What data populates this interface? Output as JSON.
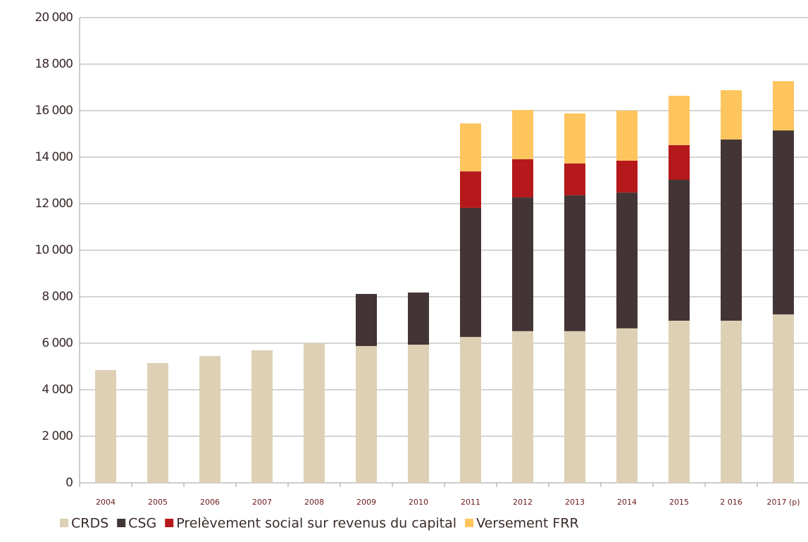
{
  "chart_data": {
    "type": "stacked_bar",
    "categories": [
      "2004",
      "2005",
      "2006",
      "2007",
      "2008",
      "2009",
      "2010",
      "2011",
      "2012",
      "2013",
      "2014",
      "2015",
      "2 016",
      "2017 (p)"
    ],
    "series": [
      {
        "name": "CRDS",
        "color": "#ddd0b5",
        "values": [
          4850,
          5150,
          5450,
          5700,
          6000,
          5880,
          5940,
          6270,
          6520,
          6520,
          6640,
          6970,
          6970,
          7240
        ]
      },
      {
        "name": "CSG",
        "color": "#433535",
        "values": [
          null,
          null,
          null,
          null,
          null,
          2240,
          2240,
          5550,
          5750,
          5840,
          5840,
          6060,
          7790,
          7910
        ]
      },
      {
        "name": "Prelèvement social sur revenus du capital",
        "color": "#b5191c",
        "values": [
          null,
          null,
          null,
          null,
          null,
          null,
          null,
          1570,
          1640,
          1370,
          1370,
          1490,
          null,
          null
        ]
      },
      {
        "name": "Versement FRR",
        "color": "#fec55e",
        "values": [
          null,
          null,
          null,
          null,
          null,
          null,
          null,
          2060,
          2120,
          2150,
          2150,
          2120,
          2120,
          2120
        ]
      }
    ],
    "ylim": [
      0,
      20000
    ],
    "yticks": [
      0,
      {
        "value": 2000,
        "label": "2 000"
      },
      {
        "value": 4000,
        "label": "4 000"
      },
      {
        "value": 6000,
        "label": "6 000"
      },
      {
        "value": 8000,
        "label": "8 000"
      },
      {
        "value": 10000,
        "label": "10 000"
      },
      {
        "value": 12000,
        "label": "12 000"
      },
      {
        "value": 14000,
        "label": "14 000"
      },
      {
        "value": 16000,
        "label": "16 000"
      },
      {
        "value": 18000,
        "label": "18 000"
      },
      {
        "value": 20000,
        "label": "20 000"
      }
    ],
    "grid": true
  }
}
